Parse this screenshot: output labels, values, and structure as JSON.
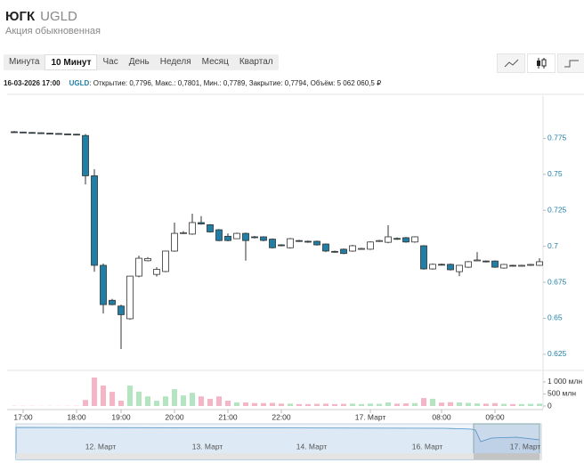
{
  "header": {
    "name": "ЮГК",
    "ticker": "UGLD",
    "subtitle": "Акция обыкновенная"
  },
  "tabs": [
    "Минута",
    "10 Минут",
    "Час",
    "День",
    "Неделя",
    "Месяц",
    "Квартал"
  ],
  "active_tab": 1,
  "info": {
    "datetime": "16-03-2026 17:00",
    "ticker": "UGLD",
    "details": ": Открытие: 0,7796, Макс.: 0,7801, Мин.: 0,7789, Закрытие: 0,7794, Объём: 5 062 060,5 ₽"
  },
  "navigator": {
    "labels": [
      "12. Март",
      "13. Март",
      "14. Март",
      "16. Март",
      "17. Март"
    ]
  },
  "chart_data": {
    "type": "candlestick",
    "categories": [
      null,
      "17:00",
      null,
      null,
      null,
      null,
      null,
      "18:00",
      null,
      null,
      null,
      null,
      "19:00",
      null,
      null,
      null,
      null,
      null,
      "20:00",
      null,
      null,
      null,
      null,
      null,
      "21:00",
      null,
      null,
      null,
      null,
      null,
      "22:00",
      null,
      null,
      null,
      null,
      null,
      null,
      null,
      null,
      null,
      "17. Март",
      null,
      null,
      null,
      null,
      null,
      null,
      null,
      "08:00",
      null,
      null,
      null,
      null,
      null,
      "09:00",
      null,
      null,
      null,
      null,
      null
    ],
    "open": [
      0.7796,
      0.7794,
      0.7791,
      0.7789,
      0.7786,
      0.7784,
      0.7781,
      0.7779,
      0.777,
      0.749,
      0.6868,
      0.6625,
      0.6585,
      0.6497,
      0.6793,
      0.69,
      0.6805,
      0.6825,
      0.6967,
      0.709,
      0.7085,
      0.7165,
      0.715,
      0.7115,
      0.707,
      0.7053,
      0.709,
      0.7066,
      0.7066,
      0.705,
      0.701,
      0.699,
      0.704,
      0.7035,
      0.7035,
      0.7016,
      0.6965,
      0.698,
      0.6967,
      0.698,
      0.698,
      0.7035,
      0.7028,
      0.7055,
      0.706,
      0.703,
      0.7004,
      0.6843,
      0.6875,
      0.6875,
      0.6824,
      0.6855,
      0.6905,
      0.6898,
      0.6898,
      0.6849,
      0.6868,
      0.6866,
      0.6868,
      0.6868
    ],
    "high": [
      0.7801,
      0.7797,
      0.7794,
      0.7792,
      0.7789,
      0.7787,
      0.7784,
      0.7782,
      0.778,
      0.7535,
      0.688,
      0.6635,
      0.6595,
      0.6795,
      0.6935,
      0.6925,
      0.6855,
      0.697,
      0.7165,
      0.7105,
      0.7227,
      0.721,
      0.7155,
      0.712,
      0.709,
      0.7095,
      0.7095,
      0.7072,
      0.707,
      0.7055,
      0.7015,
      0.7058,
      0.7045,
      0.704,
      0.704,
      0.702,
      0.697,
      0.6985,
      0.701,
      0.699,
      0.7035,
      0.7045,
      0.7146,
      0.7062,
      0.7065,
      0.707,
      0.7008,
      0.688,
      0.688,
      0.688,
      0.687,
      0.6898,
      0.696,
      0.6902,
      0.6902,
      0.6878,
      0.6872,
      0.6872,
      0.6878,
      0.6917
    ],
    "low": [
      0.7789,
      0.779,
      0.7787,
      0.7785,
      0.7782,
      0.778,
      0.7777,
      0.7774,
      0.743,
      0.6824,
      0.6533,
      0.659,
      0.6286,
      0.649,
      0.6785,
      0.6895,
      0.679,
      0.682,
      0.6962,
      0.7085,
      0.708,
      0.715,
      0.7095,
      0.7035,
      0.7035,
      0.705,
      0.69,
      0.7055,
      0.7035,
      0.6985,
      0.7,
      0.6985,
      0.703,
      0.7025,
      0.7005,
      0.696,
      0.6955,
      0.6945,
      0.6962,
      0.6978,
      0.6975,
      0.703,
      0.7022,
      0.7045,
      0.7025,
      0.7025,
      0.6838,
      0.6838,
      0.6868,
      0.6832,
      0.6793,
      0.685,
      0.69,
      0.6888,
      0.685,
      0.6845,
      0.686,
      0.6862,
      0.6864,
      0.6864
    ],
    "close": [
      0.7794,
      0.7792,
      0.7789,
      0.7787,
      0.7784,
      0.7782,
      0.7779,
      0.7777,
      0.749,
      0.6868,
      0.6595,
      0.6595,
      0.6525,
      0.6793,
      0.6917,
      0.6915,
      0.684,
      0.6967,
      0.709,
      0.7095,
      0.7165,
      0.7155,
      0.71,
      0.704,
      0.704,
      0.709,
      0.704,
      0.706,
      0.7041,
      0.699,
      0.7006,
      0.7053,
      0.7035,
      0.703,
      0.701,
      0.6967,
      0.696,
      0.695,
      0.7004,
      0.6985,
      0.703,
      0.704,
      0.7066,
      0.705,
      0.703,
      0.7066,
      0.6843,
      0.6875,
      0.6873,
      0.6837,
      0.6868,
      0.6893,
      0.6905,
      0.6893,
      0.6855,
      0.6874,
      0.6865,
      0.6868,
      0.6874,
      0.6893
    ],
    "volume": [
      10,
      8,
      8,
      6,
      6,
      6,
      8,
      10,
      250,
      1185,
      850,
      590,
      220,
      850,
      600,
      400,
      220,
      400,
      700,
      440,
      550,
      400,
      300,
      400,
      220,
      150,
      150,
      120,
      120,
      130,
      100,
      100,
      80,
      80,
      90,
      100,
      80,
      90,
      100,
      80,
      100,
      90,
      150,
      100,
      110,
      120,
      330,
      300,
      140,
      160,
      150,
      130,
      110,
      100,
      120,
      90,
      80,
      80,
      90,
      100
    ],
    "ylim": [
      0.6175,
      0.8
    ],
    "yticks": [
      0.625,
      0.65,
      0.675,
      0.7,
      0.725,
      0.75,
      0.775
    ],
    "volume_ylim": [
      0,
      1185
    ],
    "volume_ticks": [
      0,
      {
        "value": 500,
        "label": "500 млн"
      },
      {
        "value": 1000,
        "label": "1 000 млн"
      }
    ],
    "up_color": "#ffffff",
    "down_color": "#1f7fa6",
    "volume_up_color": "#b3e6c0",
    "volume_down_color": "#f5b5c6"
  }
}
